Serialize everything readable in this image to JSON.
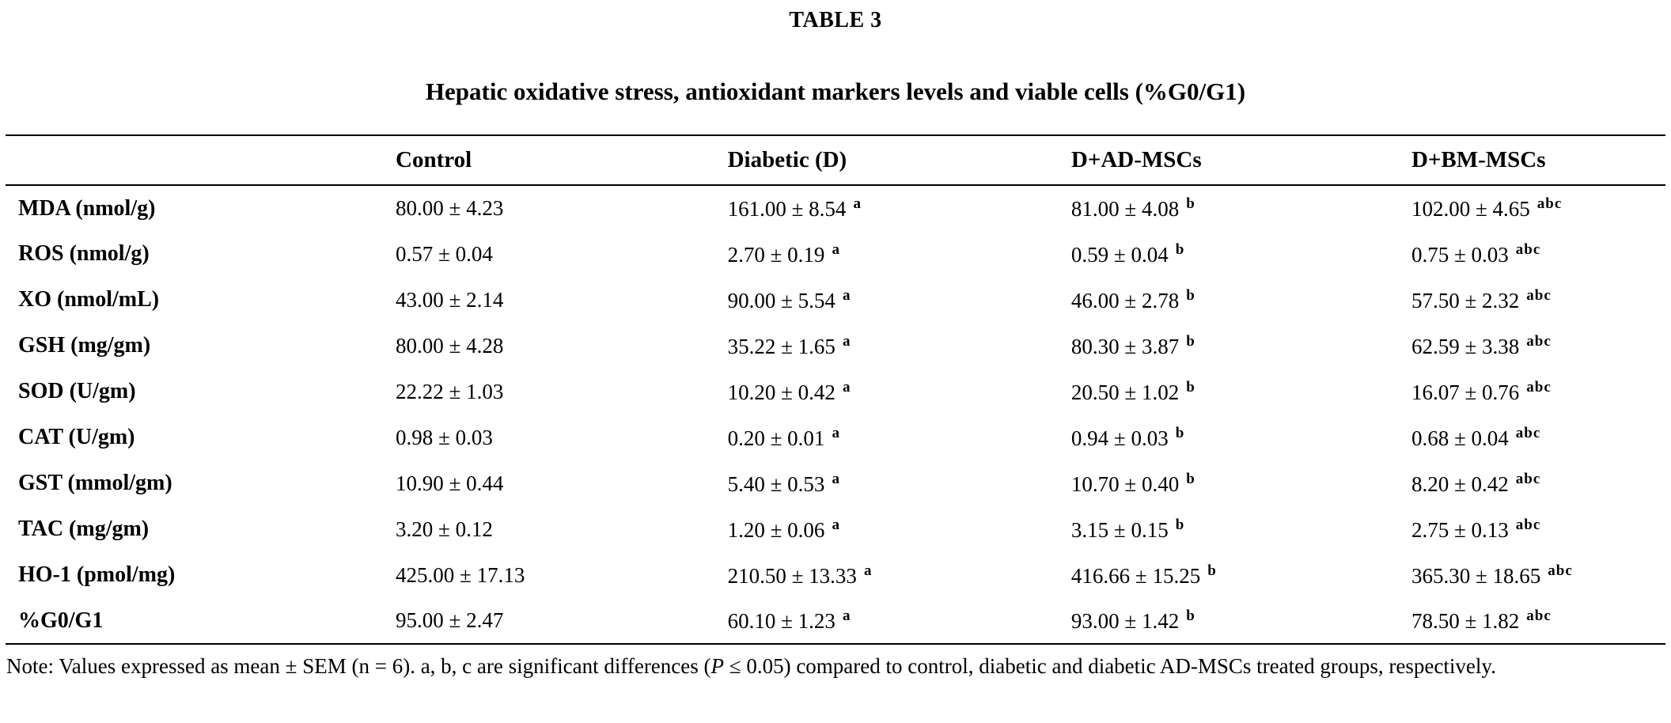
{
  "page": {
    "table_label": "TABLE 3",
    "title": "Hepatic oxidative stress, antioxidant markers levels and viable cells (%G0/G1)"
  },
  "table": {
    "headers": [
      "",
      "Control",
      "Diabetic (D)",
      "D+AD-MSCs",
      "D+BM-MSCs"
    ],
    "rows": [
      {
        "label": "MDA (nmol/g)",
        "c": "80.00 ± 4.23",
        "d": "161.00 ± 8.54",
        "ds": "a",
        "ad": "81.00 ± 4.08",
        "ads": "b",
        "bm": "102.00 ± 4.65",
        "bms": "abc"
      },
      {
        "label": "ROS (nmol/g)",
        "c": "0.57 ± 0.04",
        "d": "2.70 ± 0.19",
        "ds": "a",
        "ad": "0.59 ± 0.04",
        "ads": "b",
        "bm": "0.75 ± 0.03",
        "bms": "abc"
      },
      {
        "label": "XO (nmol/mL)",
        "c": "43.00 ± 2.14",
        "d": "90.00 ± 5.54",
        "ds": "a",
        "ad": "46.00 ± 2.78",
        "ads": "b",
        "bm": "57.50 ± 2.32",
        "bms": "abc"
      },
      {
        "label": "GSH (mg/gm)",
        "c": "80.00 ± 4.28",
        "d": "35.22 ± 1.65",
        "ds": "a",
        "ad": "80.30 ± 3.87",
        "ads": "b",
        "bm": "62.59 ± 3.38",
        "bms": "abc"
      },
      {
        "label": "SOD (U/gm)",
        "c": "22.22 ± 1.03",
        "d": "10.20 ± 0.42",
        "ds": "a",
        "ad": "20.50 ± 1.02",
        "ads": "b",
        "bm": "16.07 ± 0.76",
        "bms": "abc"
      },
      {
        "label": "CAT (U/gm)",
        "c": "0.98 ± 0.03",
        "d": "0.20 ± 0.01",
        "ds": "a",
        "ad": "0.94 ± 0.03",
        "ads": "b",
        "bm": "0.68 ± 0.04",
        "bms": "abc"
      },
      {
        "label": "GST (mmol/gm)",
        "c": "10.90 ± 0.44",
        "d": "5.40 ± 0.53",
        "ds": "a",
        "ad": "10.70 ± 0.40",
        "ads": "b",
        "bm": "8.20 ± 0.42",
        "bms": "abc"
      },
      {
        "label": "TAC (mg/gm)",
        "c": "3.20 ± 0.12",
        "d": "1.20 ± 0.06",
        "ds": "a",
        "ad": "3.15 ± 0.15",
        "ads": "b",
        "bm": "2.75 ± 0.13",
        "bms": "abc"
      },
      {
        "label": "HO-1 (pmol/mg)",
        "c": "425.00 ± 17.13",
        "d": "210.50 ± 13.33",
        "ds": "a",
        "ad": "416.66 ± 15.25",
        "ads": "b",
        "bm": "365.30 ± 18.65",
        "bms": "abc"
      },
      {
        "label": "%G0/G1",
        "c": "95.00 ± 2.47",
        "d": "60.10 ± 1.23",
        "ds": "a",
        "ad": "93.00 ± 1.42",
        "ads": "b",
        "bm": "78.50 ± 1.82",
        "bms": "abc"
      }
    ]
  },
  "note": {
    "part1": "Note: Values expressed as mean ± SEM (n = 6). a, b, c are significant differences (",
    "p_italic": "P",
    "part2": " ≤ 0.05) compared to control, diabetic and diabetic AD-MSCs treated groups, respectively."
  }
}
